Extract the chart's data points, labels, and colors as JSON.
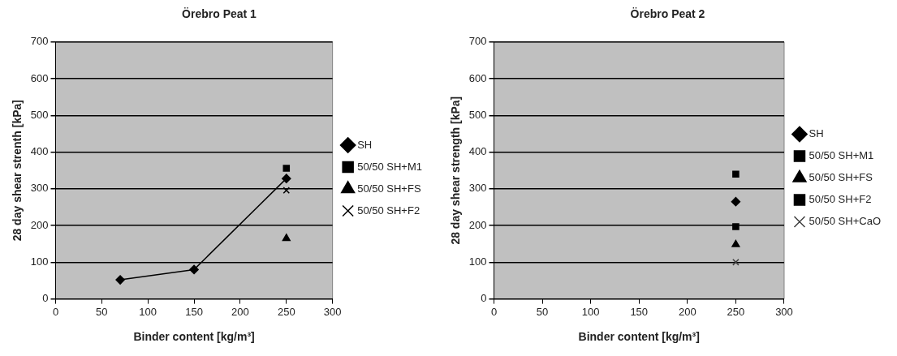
{
  "chart_data": [
    {
      "type": "line",
      "title": "Örebro Peat 1",
      "xlabel": "Binder content [kg/m³]",
      "ylabel": "28 day shear strenth [kPa]",
      "xlim": [
        0,
        300
      ],
      "xticks": [
        0,
        50,
        100,
        150,
        200,
        250,
        300
      ],
      "ylim": [
        0,
        700
      ],
      "yticks": [
        0,
        100,
        200,
        300,
        400,
        500,
        600,
        700
      ],
      "grid": "y",
      "legend": "right",
      "series": [
        {
          "name": "SH",
          "color": "#000000",
          "marker": "diamond",
          "x": [
            70,
            150,
            250
          ],
          "values": [
            52,
            80,
            328
          ]
        },
        {
          "name": "50/50 SH+M1",
          "color": "#000000",
          "marker": "square",
          "x": [
            250
          ],
          "values": [
            356
          ]
        },
        {
          "name": "50/50 SH+FS",
          "color": "#000000",
          "marker": "triangle",
          "x": [
            250
          ],
          "values": [
            165
          ]
        },
        {
          "name": "50/50 SH+F2",
          "color": "#000000",
          "marker": "cross",
          "x": [
            250
          ],
          "values": [
            296
          ]
        }
      ]
    },
    {
      "type": "line",
      "title": "Örebro Peat 2",
      "xlabel": "Binder content [kg/m³]",
      "ylabel": "28 day shear strength [kPa]",
      "xlim": [
        0,
        300
      ],
      "xticks": [
        0,
        50,
        100,
        150,
        200,
        250,
        300
      ],
      "ylim": [
        0,
        700
      ],
      "yticks": [
        0,
        100,
        200,
        300,
        400,
        500,
        600,
        700
      ],
      "grid": "y",
      "legend": "right",
      "series": [
        {
          "name": "SH",
          "color": "#000000",
          "marker": "diamond",
          "x": [
            250
          ],
          "values": [
            265
          ]
        },
        {
          "name": "50/50 SH+M1",
          "color": "#000000",
          "marker": "square",
          "x": [
            250
          ],
          "values": [
            340
          ]
        },
        {
          "name": "50/50 SH+FS",
          "color": "#000000",
          "marker": "triangle",
          "x": [
            250
          ],
          "values": [
            148
          ]
        },
        {
          "name": "50/50 SH+F2",
          "color": "#000000",
          "marker": "square",
          "x": [
            250
          ],
          "values": [
            197
          ]
        },
        {
          "name": "50/50 SH+CaO",
          "color": "#404040",
          "marker": "cross",
          "x": [
            250
          ],
          "values": [
            100
          ]
        }
      ]
    }
  ]
}
